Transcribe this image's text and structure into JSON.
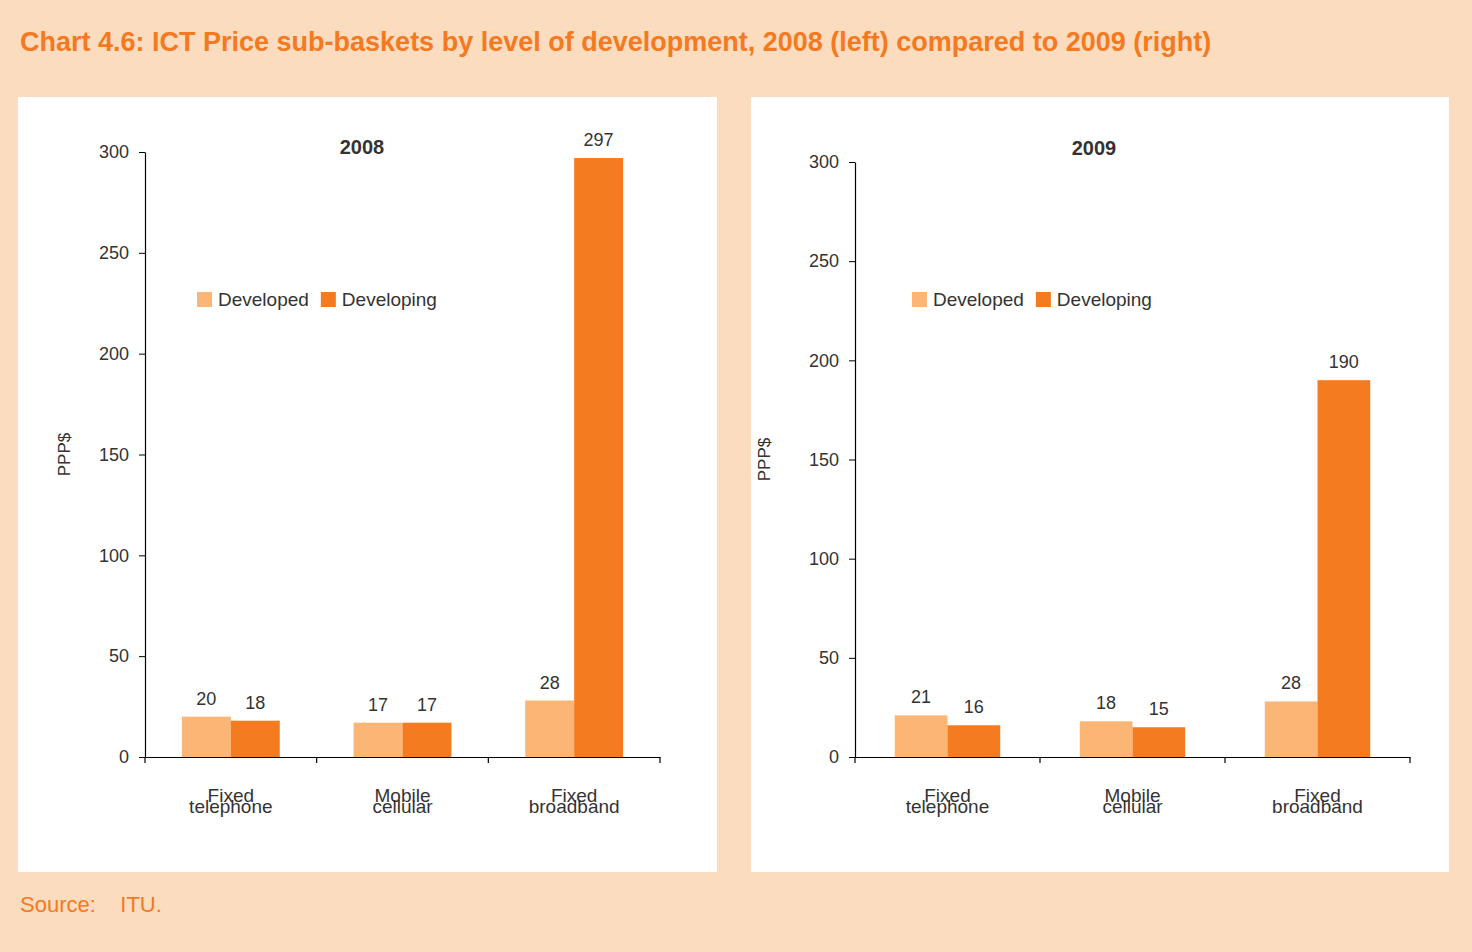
{
  "title": "Chart 4.6: ICT Price sub-baskets by level of development, 2008 (left) compared to 2009 (right)",
  "source": "Source:    ITU.",
  "chart_data": [
    {
      "type": "bar",
      "title": "2008",
      "y_label": "PPP$",
      "categories": [
        "Fixed telephone",
        "Mobile cellular",
        "Fixed broadband"
      ],
      "series": [
        {
          "name": "Developed",
          "color": "#fbb574",
          "values": [
            20,
            17,
            28
          ]
        },
        {
          "name": "Developing",
          "color": "#f47b20",
          "values": [
            18,
            17,
            297
          ]
        }
      ],
      "ylim": [
        0,
        300
      ],
      "yticks": [
        0,
        50,
        100,
        150,
        200,
        250,
        300
      ],
      "grid": false,
      "legend": "upper left",
      "data_labels": true
    },
    {
      "type": "bar",
      "title": "2009",
      "y_label": "PPP$",
      "categories": [
        "Fixed telephone",
        "Mobile cellular",
        "Fixed broadband"
      ],
      "series": [
        {
          "name": "Developed",
          "color": "#fbb574",
          "values": [
            21,
            18,
            28
          ]
        },
        {
          "name": "Developing",
          "color": "#f47b20",
          "values": [
            16,
            15,
            190
          ]
        }
      ],
      "ylim": [
        0,
        300
      ],
      "yticks": [
        0,
        50,
        100,
        150,
        200,
        250,
        300
      ],
      "grid": false,
      "legend": "upper left",
      "data_labels": true
    }
  ]
}
